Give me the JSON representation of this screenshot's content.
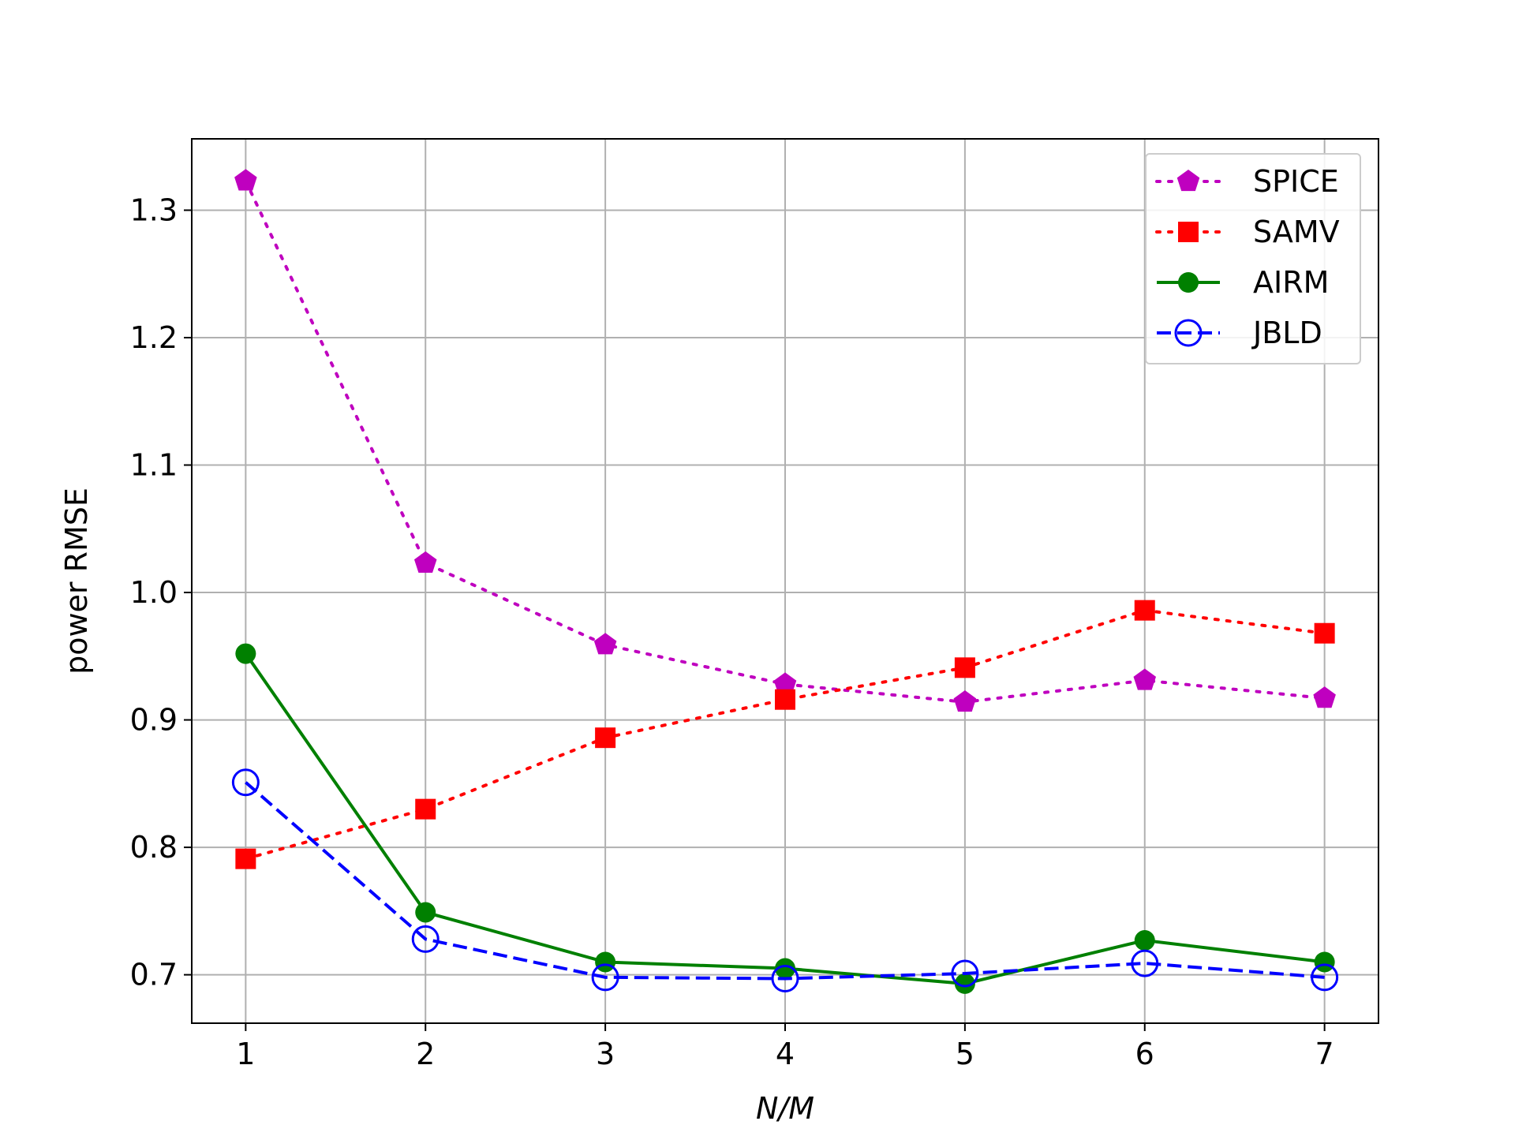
{
  "chart_data": {
    "type": "line",
    "title": "",
    "xlabel": "N/M",
    "ylabel": "power RMSE",
    "x": [
      1,
      2,
      3,
      4,
      5,
      6,
      7
    ],
    "xlim": [
      0.7,
      7.3
    ],
    "ylim": [
      0.662,
      1.356
    ],
    "xticks": [
      1,
      2,
      3,
      4,
      5,
      6,
      7
    ],
    "yticks": [
      0.7,
      0.8,
      0.9,
      1.0,
      1.1,
      1.2,
      1.3
    ],
    "ytick_labels": [
      "0.7",
      "0.8",
      "0.9",
      "1.0",
      "1.1",
      "1.2",
      "1.3"
    ],
    "grid": true,
    "legend_position": "top-right",
    "series": [
      {
        "name": "SPICE",
        "values": [
          1.323,
          1.023,
          0.959,
          0.928,
          0.914,
          0.931,
          0.917
        ],
        "color": "#bf00bf",
        "marker": "pentagon",
        "linestyle": "dotted"
      },
      {
        "name": "SAMV",
        "values": [
          0.791,
          0.83,
          0.886,
          0.916,
          0.941,
          0.986,
          0.968
        ],
        "color": "#ff0000",
        "marker": "square",
        "linestyle": "dotted"
      },
      {
        "name": "AIRM",
        "values": [
          0.952,
          0.749,
          0.71,
          0.705,
          0.693,
          0.727,
          0.71
        ],
        "color": "#008000",
        "marker": "circle",
        "linestyle": "solid"
      },
      {
        "name": "JBLD",
        "values": [
          0.851,
          0.728,
          0.698,
          0.697,
          0.701,
          0.709,
          0.698
        ],
        "color": "#0000ff",
        "marker": "open-circle",
        "linestyle": "dashed"
      }
    ]
  }
}
